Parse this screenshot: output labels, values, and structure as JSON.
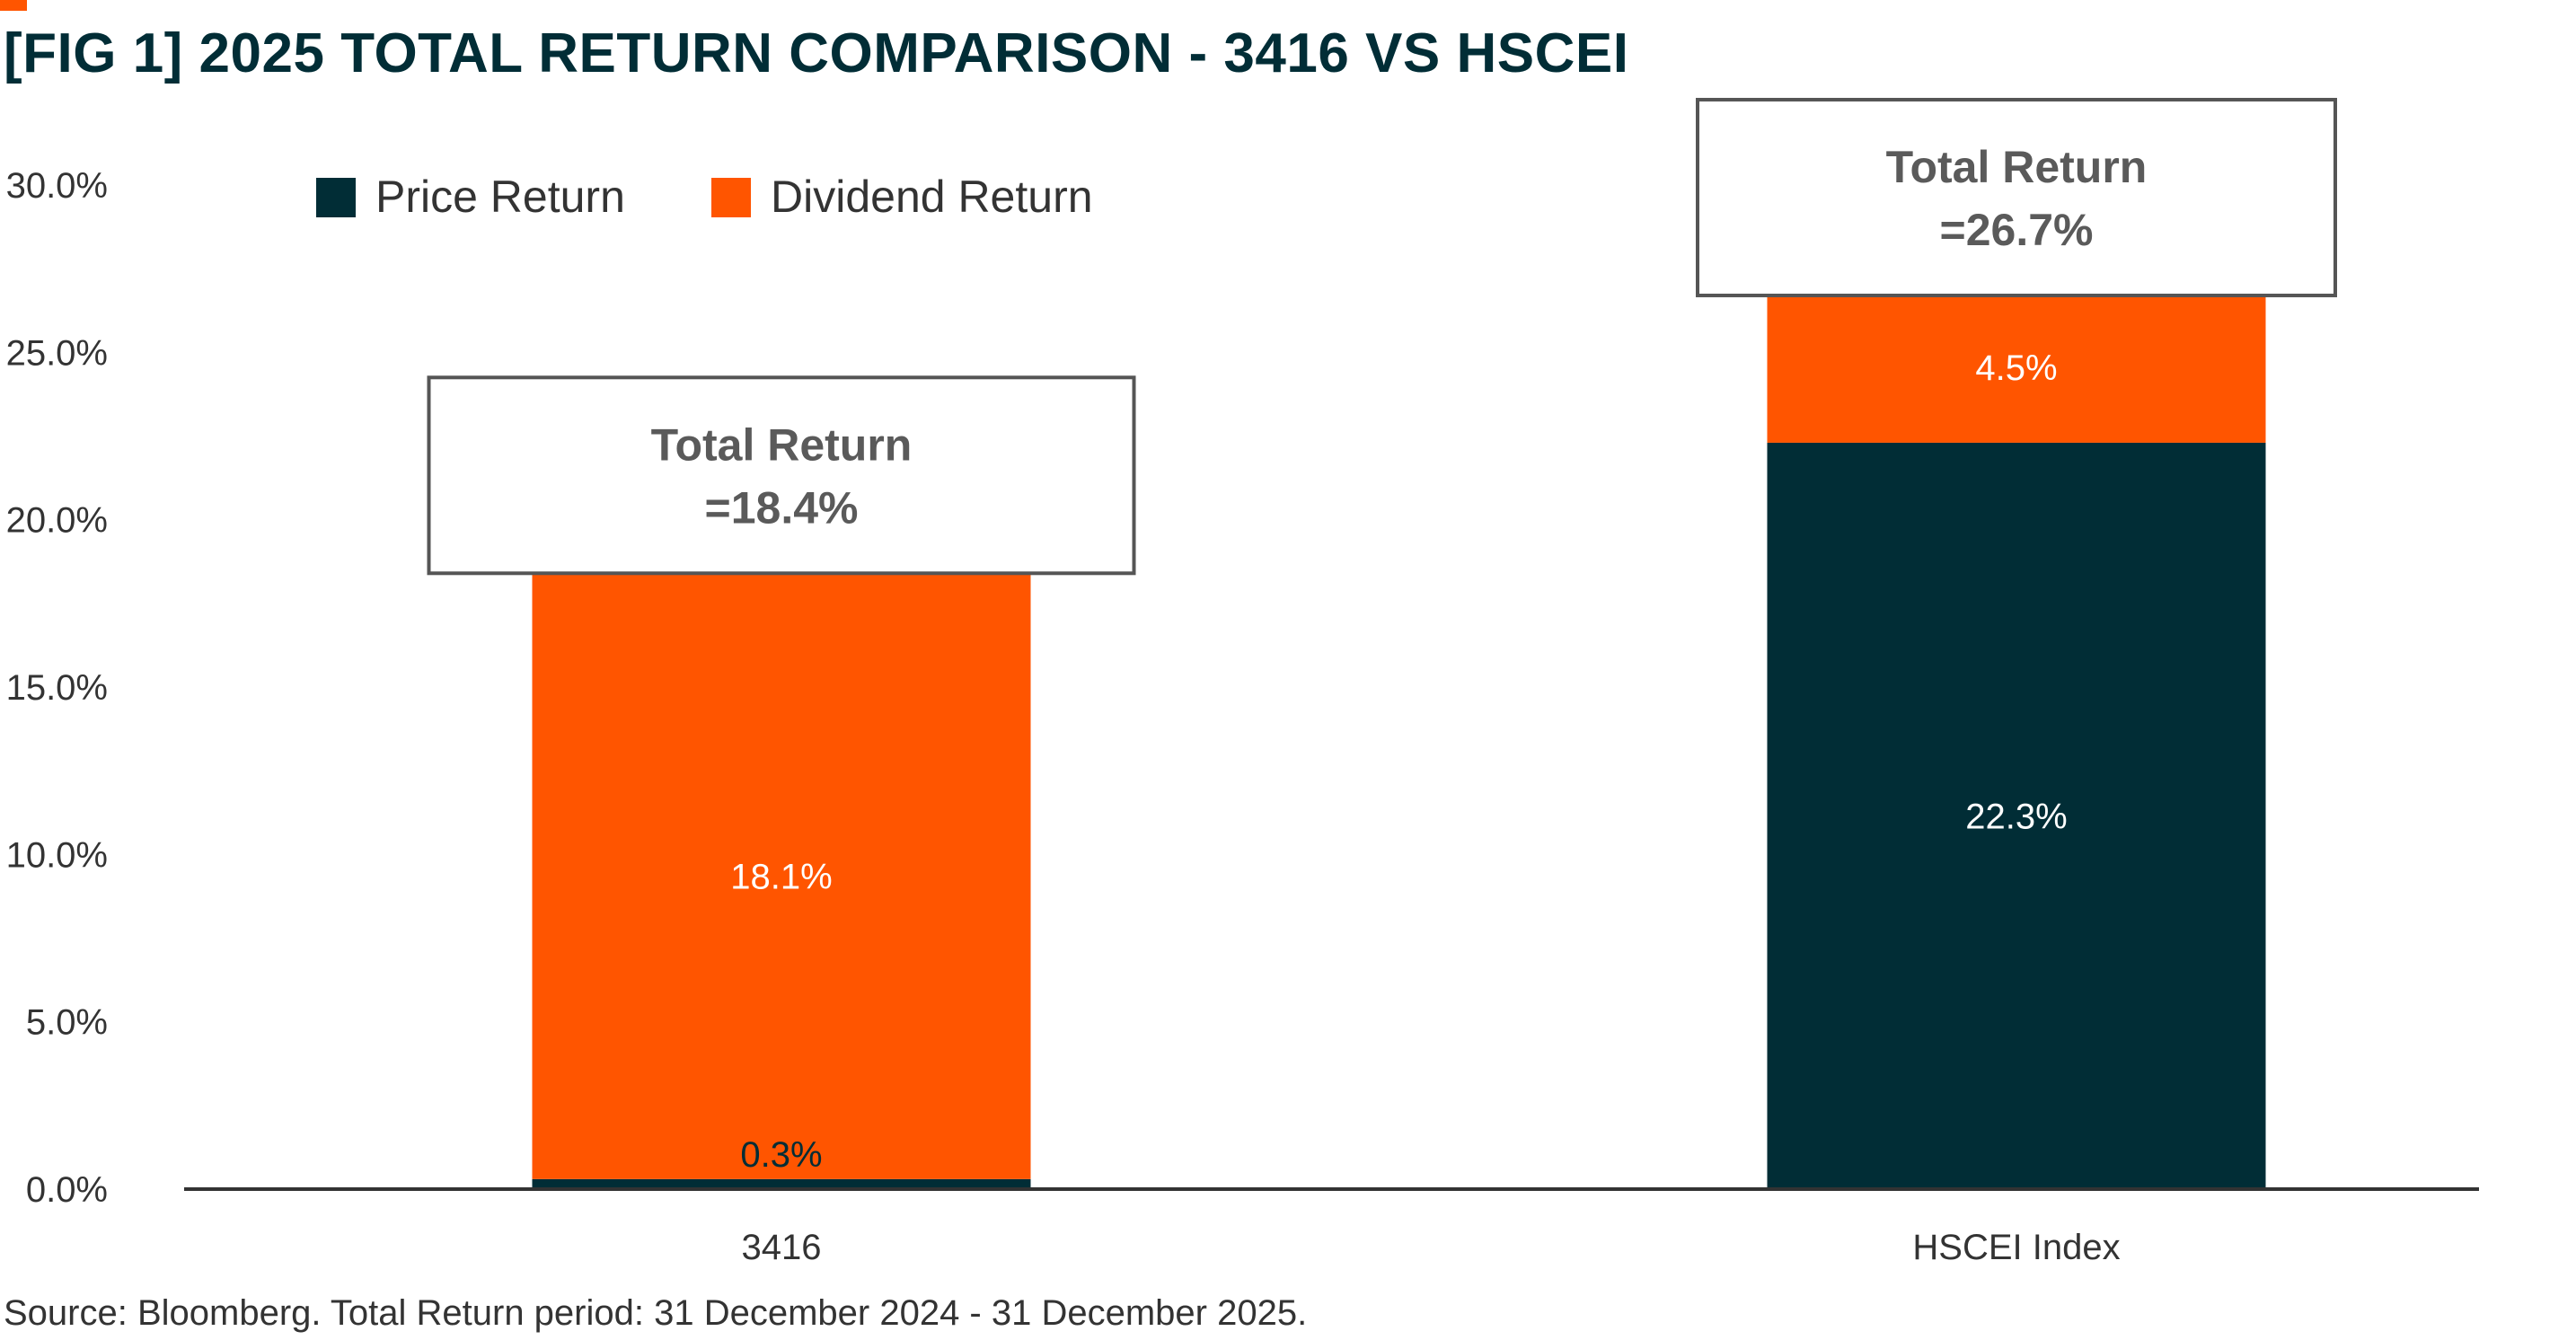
{
  "title": "[FIG 1]  2025 TOTAL RETURN COMPARISON - 3416 VS HSCEI",
  "source": "Source: Bloomberg. Total Return period: 31 December 2024 - 31 December 2025.",
  "colors": {
    "price": "#012d36",
    "dividend": "#FF5500",
    "text": "#333333",
    "title": "#012d36",
    "box_text": "#5a5a5a"
  },
  "chart_data": {
    "type": "bar",
    "stacked": true,
    "categories": [
      "3416",
      "HSCEI Index"
    ],
    "series": [
      {
        "name": "Price Return",
        "values": [
          0.3,
          22.3
        ],
        "labels": [
          "0.3%",
          "22.3%"
        ]
      },
      {
        "name": "Dividend Return",
        "values": [
          18.1,
          4.5
        ],
        "labels": [
          "18.1%",
          "4.5%"
        ]
      }
    ],
    "totals": [
      {
        "line1": "Total Return",
        "line2": "=18.4%",
        "value": 18.4
      },
      {
        "line1": "Total Return",
        "line2": "=26.7%",
        "value": 26.7
      }
    ],
    "ylim": [
      0,
      30
    ],
    "yticks": [
      0,
      5,
      10,
      15,
      20,
      25,
      30
    ],
    "ytick_labels": [
      "0.0%",
      "5.0%",
      "10.0%",
      "15.0%",
      "20.0%",
      "25.0%",
      "30.0%"
    ],
    "legend_position": "top-left",
    "grid": false
  }
}
